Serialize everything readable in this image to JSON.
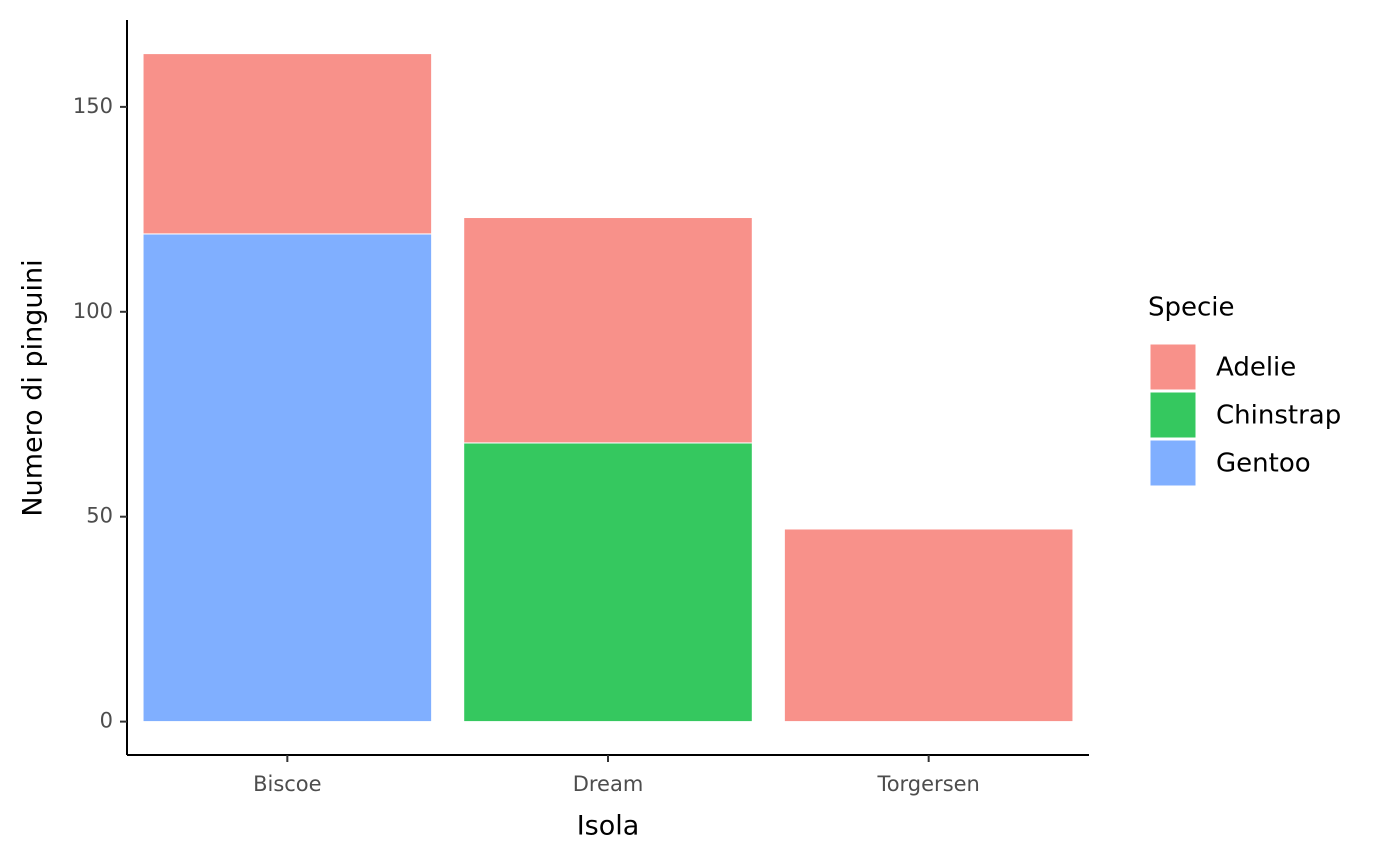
{
  "chart_data": {
    "type": "bar",
    "stacked": true,
    "x_label": "Isola",
    "y_label": "Numero di pinguini",
    "legend_title": "Specie",
    "legend_position": "right",
    "categories": [
      "Biscoe",
      "Dream",
      "Torgersen"
    ],
    "series": [
      {
        "name": "Adelie",
        "color": "#f8918a",
        "values": [
          44,
          55,
          47
        ]
      },
      {
        "name": "Chinstrap",
        "color": "#35c85f",
        "values": [
          null,
          68,
          null
        ]
      },
      {
        "name": "Gentoo",
        "color": "#80afff",
        "values": [
          119,
          null,
          null
        ]
      }
    ],
    "ylim": [
      -8.15,
      171.2
    ],
    "yticks": [
      0,
      50,
      100,
      150
    ],
    "grid": false
  }
}
